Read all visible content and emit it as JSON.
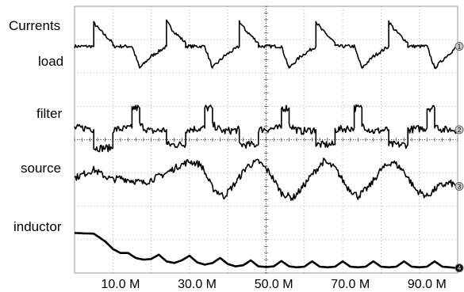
{
  "chart_data": {
    "type": "line",
    "title": "",
    "xlabel": "",
    "ylabel": "",
    "xlim": [
      -2,
      98
    ],
    "ylim": [
      0,
      8
    ],
    "x_tick_values": [
      10,
      30,
      50,
      70,
      90
    ],
    "x_tick_labels": [
      "10.0 M",
      "30.0 M",
      "50.0 M",
      "70.0 M",
      "90.0 M"
    ],
    "grid": true,
    "colors": {
      "trace": "#000000",
      "grid": "#9a9a9a",
      "marker": "#c8c8c8"
    },
    "series": [
      {
        "name": "load",
        "marker_label": "1",
        "noise": 0.05,
        "x": [
          -2,
          3,
          3,
          4.5,
          8,
          8,
          13,
          15,
          15,
          18,
          22,
          22,
          23.5,
          27,
          27,
          32,
          34,
          34,
          37,
          41,
          41,
          42.5,
          46,
          46,
          52,
          54,
          54,
          57,
          61,
          61,
          62.5,
          66,
          66,
          71,
          73,
          73,
          76,
          80,
          80,
          81.5,
          85,
          85,
          90,
          92,
          92,
          95,
          98
        ],
        "y": [
          6.8,
          6.8,
          7.5,
          7.3,
          6.9,
          6.8,
          6.8,
          6.15,
          6.15,
          6.5,
          6.8,
          7.55,
          7.3,
          6.9,
          6.8,
          6.8,
          6.15,
          6.15,
          6.5,
          6.8,
          7.55,
          7.3,
          6.9,
          6.8,
          6.8,
          6.15,
          6.15,
          6.5,
          6.8,
          7.55,
          7.3,
          6.9,
          6.8,
          6.8,
          6.15,
          6.15,
          6.5,
          6.8,
          7.55,
          7.3,
          6.9,
          6.8,
          6.8,
          6.15,
          6.15,
          6.5,
          6.8
        ]
      },
      {
        "name": "filter",
        "marker_label": "2",
        "noise": 0.11,
        "x": [
          -2,
          2,
          3,
          3,
          8,
          8,
          13,
          13,
          15,
          15,
          17,
          18,
          22,
          22,
          27,
          27,
          32,
          32,
          34,
          34,
          36,
          37,
          41,
          41,
          46,
          46,
          52,
          52,
          54,
          54,
          56,
          57,
          61,
          61,
          66,
          66,
          71,
          71,
          73,
          73,
          75,
          76,
          80,
          80,
          85,
          85,
          90,
          90,
          92,
          92,
          94,
          98
        ],
        "y": [
          4.35,
          4.35,
          4.3,
          3.75,
          3.75,
          4.3,
          4.35,
          4.95,
          4.95,
          4.45,
          4.3,
          4.25,
          4.3,
          3.85,
          3.85,
          4.3,
          4.35,
          4.95,
          4.95,
          4.45,
          4.3,
          4.25,
          4.3,
          3.85,
          3.85,
          4.3,
          4.35,
          4.95,
          4.95,
          4.45,
          4.3,
          4.25,
          4.3,
          3.85,
          3.85,
          4.3,
          4.35,
          4.95,
          4.95,
          4.45,
          4.3,
          4.25,
          4.3,
          3.85,
          3.85,
          4.3,
          4.35,
          4.95,
          4.95,
          4.45,
          4.3,
          4.3
        ]
      },
      {
        "name": "source",
        "marker_label": "3",
        "noise": 0.1,
        "x": [
          -2,
          3,
          6,
          8,
          10,
          14,
          16,
          19,
          22,
          25,
          28,
          31,
          34,
          37,
          40,
          43,
          46,
          49,
          52,
          55,
          57,
          60,
          63,
          66,
          69,
          72,
          75,
          78,
          81,
          84,
          87,
          90,
          93,
          96,
          98
        ],
        "y": [
          2.85,
          3.1,
          2.9,
          2.8,
          2.85,
          2.75,
          2.7,
          2.85,
          3.0,
          3.2,
          3.35,
          3.25,
          2.55,
          2.3,
          2.7,
          3.2,
          3.35,
          3.0,
          2.4,
          2.25,
          2.5,
          2.95,
          3.35,
          3.15,
          2.6,
          2.3,
          2.6,
          3.1,
          3.35,
          3.05,
          2.5,
          2.3,
          2.6,
          2.7,
          2.6
        ]
      },
      {
        "name": "inductor",
        "marker_label": "4",
        "noise": 0,
        "x": [
          -2,
          3,
          6,
          8,
          10,
          12,
          14,
          16,
          18,
          20,
          22,
          24,
          26,
          28,
          30,
          32,
          34,
          36,
          38,
          40,
          42,
          44,
          46,
          48,
          50,
          52,
          54,
          56,
          58,
          60,
          62,
          64,
          66,
          68,
          70,
          72,
          74,
          76,
          78,
          80,
          82,
          84,
          86,
          88,
          90,
          92,
          94,
          96,
          98
        ],
        "y": [
          1.2,
          1.18,
          0.95,
          0.72,
          0.6,
          0.6,
          0.45,
          0.4,
          0.42,
          0.55,
          0.35,
          0.3,
          0.38,
          0.52,
          0.32,
          0.25,
          0.3,
          0.45,
          0.27,
          0.2,
          0.23,
          0.38,
          0.2,
          0.18,
          0.2,
          0.36,
          0.2,
          0.17,
          0.19,
          0.35,
          0.19,
          0.17,
          0.19,
          0.35,
          0.19,
          0.17,
          0.19,
          0.35,
          0.19,
          0.17,
          0.19,
          0.35,
          0.19,
          0.17,
          0.19,
          0.35,
          0.19,
          0.17,
          0.15
        ]
      }
    ]
  },
  "labels": {
    "title": "Currents",
    "load": "load",
    "filter": "filter",
    "source": "source",
    "inductor": "inductor"
  }
}
